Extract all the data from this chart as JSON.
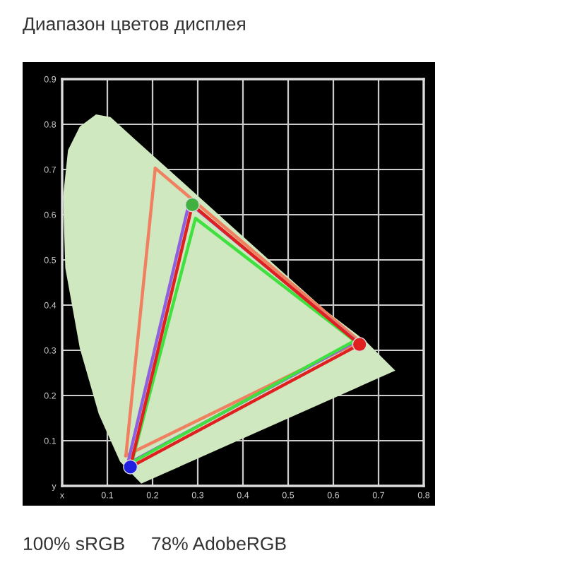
{
  "chart_data": {
    "type": "line",
    "title": "Диапазон цветов дисплея",
    "annotations": [
      "100% sRGB     78% AdobeRGB"
    ],
    "xlim": [
      0,
      0.8
    ],
    "ylim": [
      0,
      0.9
    ],
    "xticks": [
      {
        "value": 0,
        "label": "x"
      },
      0.1,
      0.2,
      0.3,
      0.4,
      0.5,
      0.6,
      0.7,
      0.8
    ],
    "yticks": [
      {
        "value": 0,
        "label": "y"
      },
      0.1,
      0.2,
      0.3,
      0.4,
      0.5,
      0.6,
      0.7,
      0.8,
      0.9
    ],
    "grid": true,
    "legend": false,
    "series": [
      {
        "type": "area",
        "color": "#cfe8bf",
        "x": [
          0.175,
          0.128,
          0.081,
          0.039,
          0.007,
          0.002,
          0.013,
          0.039,
          0.075,
          0.107,
          0.164,
          0.269,
          0.373,
          0.478,
          0.583,
          0.672,
          0.737,
          0.175
        ],
        "values": [
          0.005,
          0.054,
          0.159,
          0.305,
          0.482,
          0.639,
          0.743,
          0.795,
          0.822,
          0.816,
          0.764,
          0.67,
          0.576,
          0.482,
          0.388,
          0.32,
          0.255,
          0.005
        ]
      },
      {
        "color": "#f08060",
        "x": [
          0.141,
          0.206,
          0.658
        ],
        "values": [
          0.067,
          0.703,
          0.32
        ]
      },
      {
        "color": "#f08060",
        "x": [
          0.141,
          0.658
        ],
        "values": [
          0.067,
          0.32
        ]
      },
      {
        "color": "#9060e0",
        "x": [
          0.145,
          0.281,
          0.651
        ],
        "values": [
          0.049,
          0.626,
          0.32
        ]
      },
      {
        "color": "#9060e0",
        "x": [
          0.145,
          0.651
        ],
        "values": [
          0.049,
          0.32
        ]
      },
      {
        "color": "#40e040",
        "x": [
          0.154,
          0.295,
          0.647
        ],
        "values": [
          0.052,
          0.592,
          0.321
        ]
      },
      {
        "color": "#40e040",
        "x": [
          0.154,
          0.647
        ],
        "values": [
          0.052,
          0.321
        ]
      },
      {
        "color": "#e02020",
        "x": [
          0.151,
          0.288,
          0.658
        ],
        "values": [
          0.042,
          0.622,
          0.313
        ]
      },
      {
        "color": "#e02020",
        "x": [
          0.151,
          0.658
        ],
        "values": [
          0.042,
          0.313
        ]
      },
      {
        "type": "scatter",
        "marker": "circle",
        "colors": [
          "#40b040",
          "#e02020",
          "#2020e0"
        ],
        "x": [
          0.288,
          0.658,
          0.151
        ],
        "values": [
          0.622,
          0.313,
          0.042
        ]
      }
    ]
  }
}
